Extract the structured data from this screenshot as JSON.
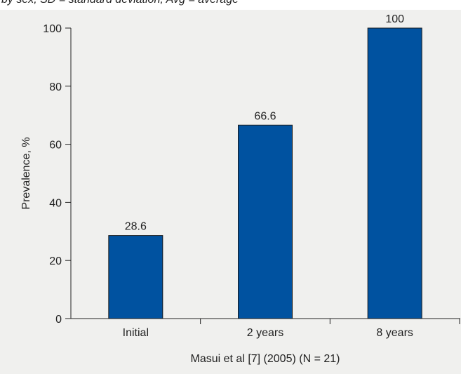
{
  "top_caption": "by sex, SD = standard deviation; Avg = average",
  "chart_data": {
    "type": "bar",
    "categories": [
      "Initial",
      "2 years",
      "8 years"
    ],
    "values": [
      28.6,
      66.6,
      100
    ],
    "data_labels": [
      "28.6",
      "66.6",
      "100"
    ],
    "title": "",
    "xlabel": "Masui et al [7] (2005) (N = 21)",
    "ylabel": "Prevalence, %",
    "ylim": [
      0,
      100
    ],
    "yticks": [
      0,
      20,
      40,
      60,
      80,
      100
    ],
    "grid": false,
    "bar_color": "#0052a0",
    "bar_edge_color": "#1a1a1a",
    "background_color": "#f0f0ee"
  }
}
